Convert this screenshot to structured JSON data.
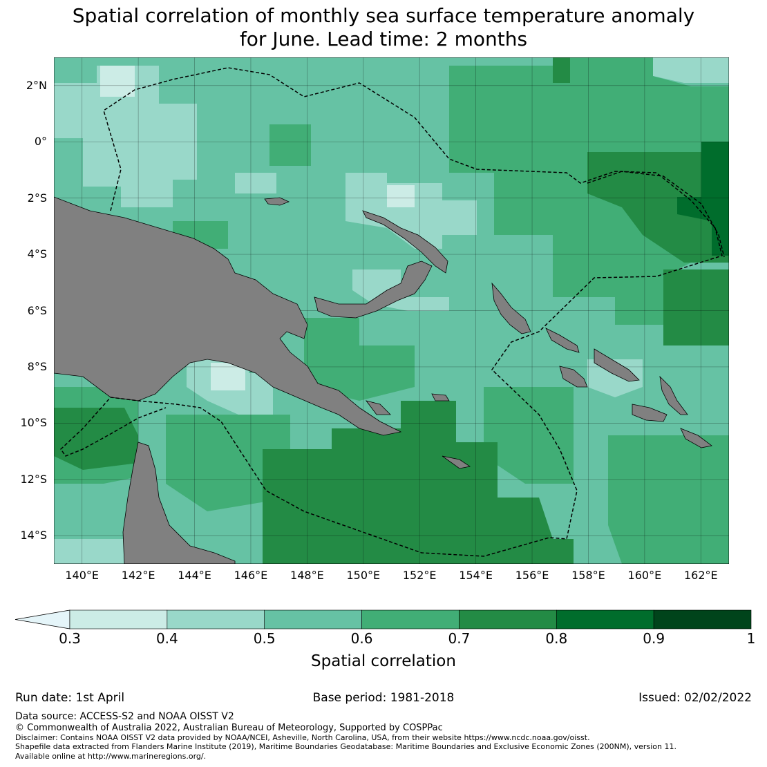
{
  "title_line1": "Spatial correlation of monthly sea surface temperature anomaly",
  "title_line2": "for June. Lead time: 2 months",
  "map": {
    "lon_range": [
      139,
      163
    ],
    "lat_range": [
      -15,
      3
    ],
    "lat_ticks": [
      {
        "value": 2,
        "label": "2°N"
      },
      {
        "value": 0,
        "label": "0°"
      },
      {
        "value": -2,
        "label": "2°S"
      },
      {
        "value": -4,
        "label": "4°S"
      },
      {
        "value": -6,
        "label": "6°S"
      },
      {
        "value": -8,
        "label": "8°S"
      },
      {
        "value": -10,
        "label": "10°S"
      },
      {
        "value": -12,
        "label": "12°S"
      },
      {
        "value": -14,
        "label": "14°S"
      }
    ],
    "lon_ticks": [
      {
        "value": 140,
        "label": "140°E"
      },
      {
        "value": 142,
        "label": "142°E"
      },
      {
        "value": 144,
        "label": "144°E"
      },
      {
        "value": 146,
        "label": "146°E"
      },
      {
        "value": 148,
        "label": "148°E"
      },
      {
        "value": 150,
        "label": "150°E"
      },
      {
        "value": 152,
        "label": "152°E"
      },
      {
        "value": 154,
        "label": "154°E"
      },
      {
        "value": 156,
        "label": "156°E"
      },
      {
        "value": 158,
        "label": "158°E"
      },
      {
        "value": 160,
        "label": "160°E"
      },
      {
        "value": 162,
        "label": "162°E"
      }
    ],
    "land_color": "#808080",
    "ocean_base_color": "#66c2a4",
    "eez_line_style": "dashed black"
  },
  "colorbar": {
    "label": "Spatial correlation",
    "extend": "min",
    "under_color": "#e5f5f9",
    "bounds": [
      0.3,
      0.4,
      0.5,
      0.6,
      0.7,
      0.8,
      0.9,
      1.0
    ],
    "tick_labels": [
      "0.3",
      "0.4",
      "0.5",
      "0.6",
      "0.7",
      "0.8",
      "0.9",
      "1"
    ],
    "colors": [
      "#ccece6",
      "#99d8c9",
      "#66c2a4",
      "#41ae76",
      "#238b45",
      "#006d2c",
      "#00441b"
    ]
  },
  "footer": {
    "run_date": "Run date: 1st April",
    "base_period": "Base period: 1981-2018",
    "issued": "Issued: 02/02/2022",
    "data_source": "Data source: ACCESS-S2 and NOAA OISST V2",
    "copyright": "© Commonwealth of Australia 2022, Australian Bureau of Meteorology, Supported by COSPPac",
    "disclaimer_1": "Disclaimer: Contains NOAA OISST V2 data provided by NOAA/NCEI, Asheville, North Carolina, USA, from their website https://www.ncdc.noaa.gov/oisst.",
    "disclaimer_2": "Shapefile data extracted from Flanders Marine Institute (2019), Maritime Boundaries Geodatabase: Maritime Boundaries and Exclusive Economic Zones (200NM), version 11.",
    "disclaimer_3": "Available online at http://www.marineregions.org/."
  }
}
